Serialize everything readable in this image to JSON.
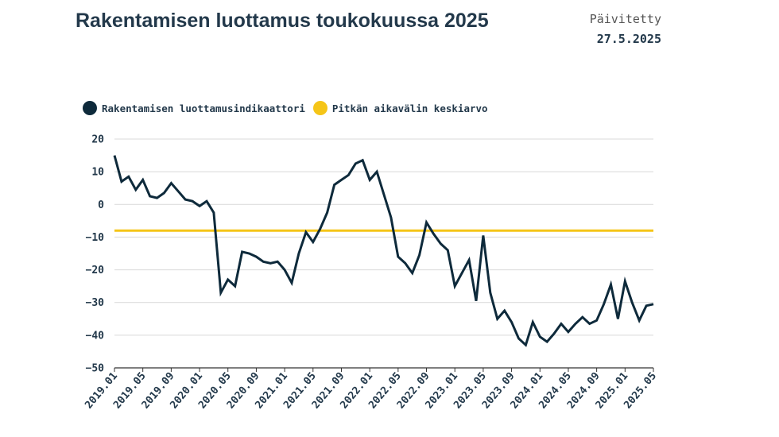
{
  "header": {
    "title": "Rakentamisen luottamus toukokuussa 2025",
    "updated_label": "Päivitetty",
    "updated_date": "27.5.2025"
  },
  "colors": {
    "indicator": "#0e2a3b",
    "average": "#f5c518",
    "grid": "#d9d9d9"
  },
  "chart_data": {
    "type": "line",
    "ylim": [
      -50,
      20
    ],
    "y_ticks": [
      20,
      10,
      0,
      -10,
      -20,
      -30,
      -40,
      -50
    ],
    "x_ticks": [
      "2019.01",
      "2019.05",
      "2019.09",
      "2020.01",
      "2020.05",
      "2020.09",
      "2021.01",
      "2021.05",
      "2021.09",
      "2022.01",
      "2022.05",
      "2022.09",
      "2023.01",
      "2023.05",
      "2023.09",
      "2024.01",
      "2024.05",
      "2024.09",
      "2025.01",
      "2025.05"
    ],
    "legend": [
      "Rakentamisen luottamusindikaattori",
      "Pitkän aikavälin keskiarvo"
    ],
    "series": [
      {
        "name": "Rakentamisen luottamusindikaattori",
        "values": [
          {
            "x": "2019.01",
            "y": 15
          },
          {
            "x": "2019.02",
            "y": 7
          },
          {
            "x": "2019.03",
            "y": 8.5
          },
          {
            "x": "2019.04",
            "y": 4.5
          },
          {
            "x": "2019.05",
            "y": 7.5
          },
          {
            "x": "2019.06",
            "y": 2.5
          },
          {
            "x": "2019.07",
            "y": 2
          },
          {
            "x": "2019.08",
            "y": 3.5
          },
          {
            "x": "2019.09",
            "y": 6.5
          },
          {
            "x": "2019.10",
            "y": 4
          },
          {
            "x": "2019.11",
            "y": 1.5
          },
          {
            "x": "2019.12",
            "y": 1
          },
          {
            "x": "2020.01",
            "y": -0.5
          },
          {
            "x": "2020.02",
            "y": 1
          },
          {
            "x": "2020.03",
            "y": -2.5
          },
          {
            "x": "2020.04",
            "y": -27
          },
          {
            "x": "2020.05",
            "y": -23
          },
          {
            "x": "2020.06",
            "y": -25
          },
          {
            "x": "2020.07",
            "y": -14.5
          },
          {
            "x": "2020.08",
            "y": -15
          },
          {
            "x": "2020.09",
            "y": -16
          },
          {
            "x": "2020.10",
            "y": -17.5
          },
          {
            "x": "2020.11",
            "y": -18
          },
          {
            "x": "2020.12",
            "y": -17.5
          },
          {
            "x": "2021.01",
            "y": -20
          },
          {
            "x": "2021.02",
            "y": -24
          },
          {
            "x": "2021.03",
            "y": -15
          },
          {
            "x": "2021.04",
            "y": -8.5
          },
          {
            "x": "2021.05",
            "y": -11.5
          },
          {
            "x": "2021.06",
            "y": -7.5
          },
          {
            "x": "2021.07",
            "y": -2.5
          },
          {
            "x": "2021.08",
            "y": 6
          },
          {
            "x": "2021.09",
            "y": 7.5
          },
          {
            "x": "2021.10",
            "y": 9
          },
          {
            "x": "2021.11",
            "y": 12.5
          },
          {
            "x": "2021.12",
            "y": 13.5
          },
          {
            "x": "2022.01",
            "y": 7.5
          },
          {
            "x": "2022.02",
            "y": 10
          },
          {
            "x": "2022.03",
            "y": 3
          },
          {
            "x": "2022.04",
            "y": -4
          },
          {
            "x": "2022.05",
            "y": -16
          },
          {
            "x": "2022.06",
            "y": -18
          },
          {
            "x": "2022.07",
            "y": -21
          },
          {
            "x": "2022.08",
            "y": -15.5
          },
          {
            "x": "2022.09",
            "y": -5.5
          },
          {
            "x": "2022.10",
            "y": -9
          },
          {
            "x": "2022.11",
            "y": -12
          },
          {
            "x": "2022.12",
            "y": -14
          },
          {
            "x": "2023.01",
            "y": -25
          },
          {
            "x": "2023.02",
            "y": -21
          },
          {
            "x": "2023.03",
            "y": -17
          },
          {
            "x": "2023.04",
            "y": -29.5
          },
          {
            "x": "2023.05",
            "y": -9.5
          },
          {
            "x": "2023.06",
            "y": -27
          },
          {
            "x": "2023.07",
            "y": -35
          },
          {
            "x": "2023.08",
            "y": -32.5
          },
          {
            "x": "2023.09",
            "y": -36
          },
          {
            "x": "2023.10",
            "y": -41
          },
          {
            "x": "2023.11",
            "y": -43
          },
          {
            "x": "2023.12",
            "y": -36
          },
          {
            "x": "2024.01",
            "y": -40.5
          },
          {
            "x": "2024.02",
            "y": -42
          },
          {
            "x": "2024.03",
            "y": -39.5
          },
          {
            "x": "2024.04",
            "y": -36.5
          },
          {
            "x": "2024.05",
            "y": -39
          },
          {
            "x": "2024.06",
            "y": -36.5
          },
          {
            "x": "2024.07",
            "y": -34.5
          },
          {
            "x": "2024.08",
            "y": -36.5
          },
          {
            "x": "2024.09",
            "y": -35.5
          },
          {
            "x": "2024.10",
            "y": -30.5
          },
          {
            "x": "2024.11",
            "y": -24.5
          },
          {
            "x": "2024.12",
            "y": -35
          },
          {
            "x": "2025.01",
            "y": -23.5
          },
          {
            "x": "2025.02",
            "y": -30
          },
          {
            "x": "2025.03",
            "y": -35.5
          },
          {
            "x": "2025.04",
            "y": -31
          },
          {
            "x": "2025.05",
            "y": -30.5
          }
        ]
      },
      {
        "name": "Pitkän aikavälin keskiarvo",
        "values": [
          {
            "x": "2019.01",
            "y": -8
          },
          {
            "x": "2025.05",
            "y": -8
          }
        ]
      }
    ]
  }
}
